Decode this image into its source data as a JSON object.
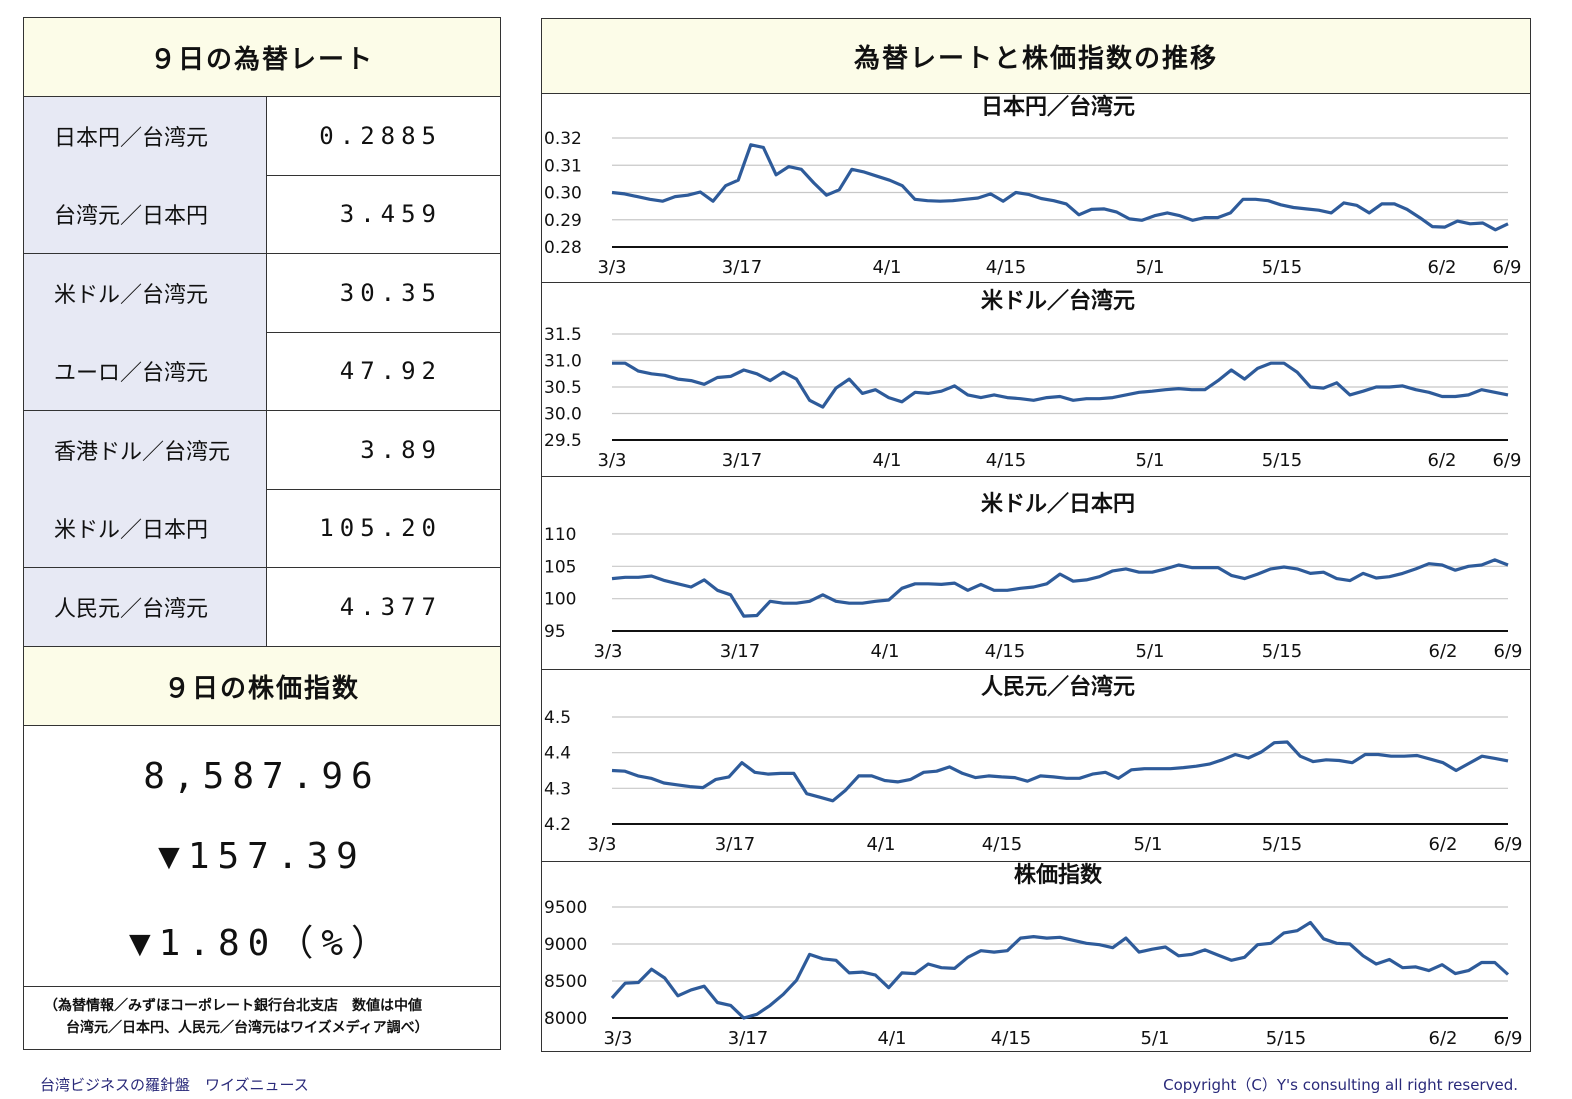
{
  "left_panel": {
    "rates_title": "９日の為替レート",
    "rates": [
      {
        "label": "日本円／台湾元",
        "value": "0.2885"
      },
      {
        "label": "台湾元／日本円",
        "value": "3.459"
      },
      {
        "label": "米ドル／台湾元",
        "value": "30.35"
      },
      {
        "label": "ユーロ／台湾元",
        "value": "47.92"
      },
      {
        "label": "香港ドル／台湾元",
        "value": "3.89"
      },
      {
        "label": "米ドル／日本円",
        "value": "105.20"
      },
      {
        "label": "人民元／台湾元",
        "value": "4.377"
      }
    ],
    "stock_title": "９日の株価指数",
    "stock_value": "8,587.96",
    "stock_change": "▼157.39",
    "stock_change_pct": "▼1.80（%）",
    "source_line1": "（為替情報／みずほコーポレート銀行台北支店　数値は中値",
    "source_line2": "台湾元／日本円、人民元／台湾元はワイズメディア調べ）"
  },
  "right_panel": {
    "title": "為替レートと株価指数の推移"
  },
  "footer": {
    "left": "台湾ビジネスの羅針盤　ワイズニュース",
    "right": "Copyright（C）Y's consulting all right reserved."
  },
  "colors": {
    "line": "#2e5b9a",
    "header_bg": "#fcfce8",
    "label_bg": "#e7e9f4"
  },
  "chart_data": [
    {
      "type": "line",
      "title": "日本円／台湾元",
      "x_ticks": [
        "3/3",
        "3/17",
        "4/1",
        "4/15",
        "5/1",
        "5/15",
        "6/2",
        "6/9"
      ],
      "yticks": [
        "0.32",
        "0.31",
        "0.30",
        "0.29",
        "0.28"
      ],
      "ylim": [
        0.28,
        0.32
      ],
      "grid": true,
      "values": [
        0.3,
        0.2995,
        0.2985,
        0.2975,
        0.2968,
        0.2985,
        0.299,
        0.3002,
        0.2968,
        0.3025,
        0.3045,
        0.3175,
        0.3165,
        0.3065,
        0.3095,
        0.3085,
        0.3035,
        0.299,
        0.301,
        0.3085,
        0.3075,
        0.306,
        0.3045,
        0.3025,
        0.2975,
        0.297,
        0.2968,
        0.297,
        0.2975,
        0.298,
        0.2995,
        0.2968,
        0.3,
        0.2993,
        0.2978,
        0.297,
        0.2958,
        0.2918,
        0.2938,
        0.294,
        0.2928,
        0.2903,
        0.2898,
        0.2915,
        0.2925,
        0.2915,
        0.2898,
        0.2908,
        0.2908,
        0.2925,
        0.2975,
        0.2975,
        0.297,
        0.2955,
        0.2945,
        0.294,
        0.2935,
        0.2925,
        0.2962,
        0.2953,
        0.2925,
        0.2958,
        0.2958,
        0.2938,
        0.2908,
        0.2875,
        0.2873,
        0.2895,
        0.2885,
        0.2888,
        0.2863,
        0.2885
      ]
    },
    {
      "type": "line",
      "title": "米ドル／台湾元",
      "x_ticks": [
        "3/3",
        "3/17",
        "4/1",
        "4/15",
        "5/1",
        "5/15",
        "6/2",
        "6/9"
      ],
      "yticks": [
        "31.5",
        "31.0",
        "30.5",
        "30.0",
        "29.5"
      ],
      "ylim": [
        29.5,
        31.5
      ],
      "grid": true,
      "values": [
        30.95,
        30.95,
        30.8,
        30.75,
        30.72,
        30.65,
        30.62,
        30.55,
        30.68,
        30.7,
        30.82,
        30.75,
        30.62,
        30.78,
        30.65,
        30.25,
        30.12,
        30.48,
        30.65,
        30.38,
        30.45,
        30.3,
        30.22,
        30.4,
        30.38,
        30.42,
        30.52,
        30.35,
        30.3,
        30.35,
        30.3,
        30.28,
        30.25,
        30.3,
        30.32,
        30.25,
        30.28,
        30.28,
        30.3,
        30.35,
        30.4,
        30.42,
        30.45,
        30.47,
        30.45,
        30.45,
        30.62,
        30.82,
        30.65,
        30.85,
        30.95,
        30.95,
        30.78,
        30.5,
        30.48,
        30.58,
        30.35,
        30.42,
        30.5,
        30.5,
        30.52,
        30.45,
        30.4,
        30.32,
        30.32,
        30.35,
        30.45,
        30.4,
        30.35
      ]
    },
    {
      "type": "line",
      "title": "米ドル／日本円",
      "x_ticks": [
        "3/3",
        "3/17",
        "4/1",
        "4/15",
        "5/1",
        "5/15",
        "6/2",
        "6/9"
      ],
      "yticks": [
        "110",
        "105",
        "100",
        "95"
      ],
      "ylim": [
        95,
        110
      ],
      "grid": true,
      "values": [
        103.1,
        103.3,
        103.3,
        103.5,
        102.8,
        102.3,
        101.8,
        102.9,
        101.3,
        100.6,
        97.3,
        97.4,
        99.6,
        99.3,
        99.3,
        99.6,
        100.6,
        99.6,
        99.3,
        99.3,
        99.6,
        99.8,
        101.6,
        102.3,
        102.3,
        102.2,
        102.4,
        101.3,
        102.2,
        101.3,
        101.3,
        101.6,
        101.8,
        102.3,
        103.8,
        102.7,
        102.9,
        103.4,
        104.3,
        104.6,
        104.1,
        104.1,
        104.6,
        105.2,
        104.8,
        104.8,
        104.8,
        103.6,
        103.1,
        103.8,
        104.6,
        104.9,
        104.6,
        103.9,
        104.1,
        103.1,
        102.8,
        103.9,
        103.2,
        103.4,
        103.9,
        104.6,
        105.4,
        105.2,
        104.4,
        105.0,
        105.2,
        106.0,
        105.2
      ]
    },
    {
      "type": "line",
      "title": "人民元／台湾元",
      "x_ticks": [
        "3/3",
        "3/17",
        "4/1",
        "4/15",
        "5/1",
        "5/15",
        "6/2",
        "6/9"
      ],
      "yticks": [
        "4.5",
        "4.4",
        "4.3",
        "4.2"
      ],
      "ylim": [
        4.2,
        4.5
      ],
      "grid": true,
      "values": [
        4.35,
        4.348,
        4.335,
        4.328,
        4.315,
        4.31,
        4.305,
        4.302,
        4.325,
        4.332,
        4.372,
        4.345,
        4.34,
        4.342,
        4.342,
        4.285,
        4.275,
        4.265,
        4.295,
        4.335,
        4.335,
        4.322,
        4.318,
        4.325,
        4.345,
        4.348,
        4.36,
        4.342,
        4.33,
        4.335,
        4.332,
        4.33,
        4.32,
        4.335,
        4.332,
        4.328,
        4.328,
        4.34,
        4.345,
        4.328,
        4.352,
        4.355,
        4.355,
        4.355,
        4.358,
        4.362,
        4.368,
        4.38,
        4.395,
        4.385,
        4.402,
        4.428,
        4.43,
        4.39,
        4.375,
        4.38,
        4.378,
        4.372,
        4.395,
        4.395,
        4.39,
        4.39,
        4.392,
        4.382,
        4.372,
        4.35,
        4.37,
        4.39,
        4.384,
        4.377
      ]
    },
    {
      "type": "line",
      "title": "株価指数",
      "x_ticks": [
        "3/3",
        "3/17",
        "4/1",
        "4/15",
        "5/1",
        "5/15",
        "6/2",
        "6/9"
      ],
      "yticks": [
        "9500",
        "9000",
        "8500",
        "8000"
      ],
      "ylim": [
        8000,
        9500
      ],
      "grid": true,
      "values": [
        8270,
        8470,
        8480,
        8660,
        8540,
        8300,
        8380,
        8430,
        8210,
        8170,
        8000,
        8050,
        8170,
        8320,
        8510,
        8860,
        8800,
        8780,
        8610,
        8620,
        8580,
        8410,
        8610,
        8600,
        8730,
        8680,
        8670,
        8820,
        8910,
        8890,
        8910,
        9080,
        9100,
        9080,
        9090,
        9050,
        9010,
        8990,
        8950,
        9080,
        8890,
        8930,
        8960,
        8840,
        8860,
        8920,
        8850,
        8780,
        8820,
        8990,
        9010,
        9150,
        9180,
        9290,
        9070,
        9010,
        9000,
        8840,
        8730,
        8790,
        8680,
        8690,
        8640,
        8720,
        8600,
        8640,
        8750,
        8750,
        8588
      ]
    }
  ]
}
